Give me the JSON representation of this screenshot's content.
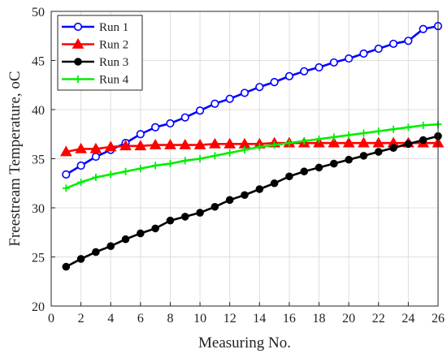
{
  "chart_data": {
    "type": "line",
    "xlabel": "Measuring No.",
    "ylabel": "Freestream Temperature, ",
    "ylabel_unit": "oC",
    "xlim": [
      0,
      26
    ],
    "ylim": [
      20,
      50
    ],
    "xticks": [
      0,
      2,
      4,
      6,
      8,
      10,
      12,
      14,
      16,
      18,
      20,
      22,
      24,
      26
    ],
    "yticks": [
      20,
      25,
      30,
      35,
      40,
      45,
      50
    ],
    "grid": true,
    "legend_position": "top-left",
    "x": [
      1,
      2,
      3,
      4,
      5,
      6,
      7,
      8,
      9,
      10,
      11,
      12,
      13,
      14,
      15,
      16,
      17,
      18,
      19,
      20,
      21,
      22,
      23,
      24,
      25,
      26
    ],
    "series": [
      {
        "name": "Run 1",
        "color": "#0000ff",
        "marker": "circle-open",
        "values": [
          33.4,
          34.3,
          35.2,
          35.9,
          36.6,
          37.5,
          38.2,
          38.6,
          39.2,
          39.9,
          40.6,
          41.1,
          41.7,
          42.3,
          42.8,
          43.4,
          43.9,
          44.3,
          44.8,
          45.2,
          45.7,
          46.2,
          46.7,
          47.0,
          48.2,
          48.5
        ]
      },
      {
        "name": "Run 2",
        "color": "#ff0000",
        "marker": "triangle",
        "values": [
          35.7,
          36.0,
          36.0,
          36.2,
          36.3,
          36.3,
          36.4,
          36.4,
          36.4,
          36.4,
          36.5,
          36.5,
          36.5,
          36.5,
          36.6,
          36.6,
          36.6,
          36.6,
          36.6,
          36.6,
          36.6,
          36.6,
          36.6,
          36.6,
          36.6,
          36.6
        ]
      },
      {
        "name": "Run 3",
        "color": "#000000",
        "marker": "circle-filled",
        "values": [
          24.0,
          24.8,
          25.5,
          26.1,
          26.8,
          27.4,
          27.9,
          28.7,
          29.1,
          29.5,
          30.1,
          30.8,
          31.3,
          31.9,
          32.5,
          33.2,
          33.7,
          34.1,
          34.5,
          34.9,
          35.3,
          35.7,
          36.1,
          36.5,
          36.9,
          37.3
        ]
      },
      {
        "name": "Run 4",
        "color": "#00ee00",
        "marker": "plus",
        "values": [
          32.0,
          32.6,
          33.1,
          33.4,
          33.7,
          34.0,
          34.3,
          34.5,
          34.8,
          35.0,
          35.3,
          35.6,
          35.9,
          36.2,
          36.4,
          36.6,
          36.8,
          37.0,
          37.2,
          37.4,
          37.6,
          37.8,
          38.0,
          38.2,
          38.4,
          38.5
        ]
      }
    ]
  }
}
